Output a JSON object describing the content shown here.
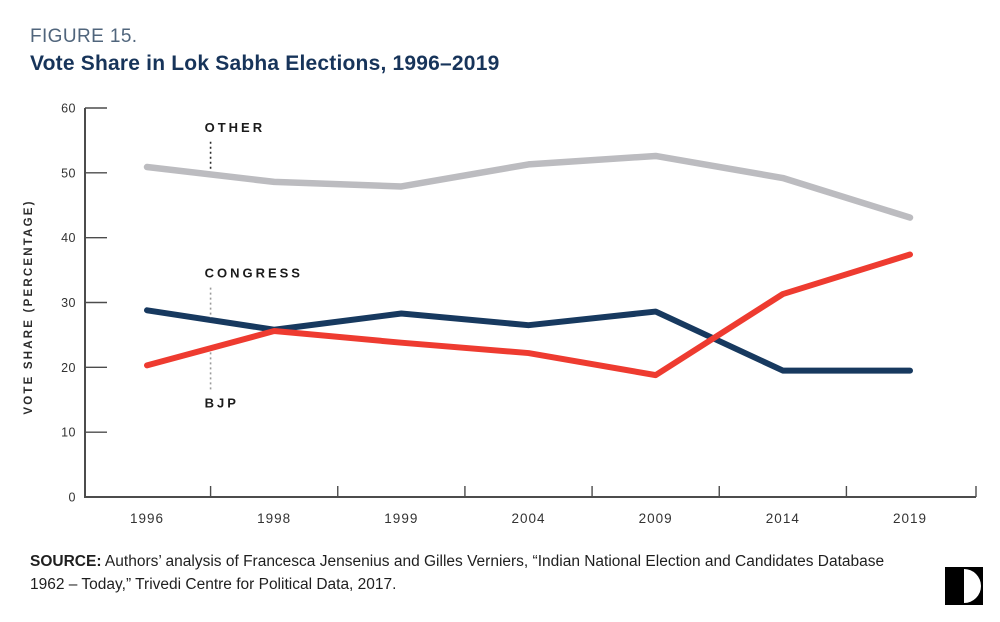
{
  "header": {
    "figure_label": "FIGURE 15.",
    "title": "Vote Share in Lok Sabha Elections, 1996–2019"
  },
  "chart_data": {
    "type": "line",
    "x": [
      1996,
      1998,
      1999,
      2004,
      2009,
      2014,
      2019
    ],
    "x_tick_labels": [
      "1996",
      "1998",
      "1999",
      "2004",
      "2009",
      "2014",
      "2019"
    ],
    "y_ticks": [
      0,
      10,
      20,
      30,
      40,
      50,
      60
    ],
    "ylim": [
      0,
      60
    ],
    "ylabel": "VOTE SHARE (PERCENTAGE)",
    "xlabel": "",
    "title": "Vote Share in Lok Sabha Elections, 1996–2019",
    "grid": false,
    "legend": "inline-annotations",
    "series": [
      {
        "name": "OTHER",
        "color": "#bcbcc0",
        "values": [
          50.9,
          48.6,
          47.9,
          51.3,
          52.6,
          49.2,
          43.1
        ]
      },
      {
        "name": "CONGRESS",
        "color": "#17395f",
        "values": [
          28.8,
          25.8,
          28.3,
          26.5,
          28.6,
          19.5,
          19.5
        ]
      },
      {
        "name": "BJP",
        "color": "#ee3b30",
        "values": [
          20.3,
          25.6,
          23.8,
          22.2,
          18.8,
          31.3,
          37.4
        ]
      }
    ],
    "annotations": [
      {
        "text": "OTHER",
        "x_between": [
          0,
          1
        ],
        "label_v": 56.9,
        "leader_v": [
          54.8,
          50.6
        ],
        "leader_color": "#2b2b2b"
      },
      {
        "text": "CONGRESS",
        "x_between": [
          0,
          1
        ],
        "label_v": 34.5,
        "leader_v": [
          32.3,
          27.6
        ],
        "leader_color": "#9b9b9b"
      },
      {
        "text": "BJP",
        "x_between": [
          0,
          1
        ],
        "label_v": 14.4,
        "leader_v": [
          22.3,
          16.6
        ],
        "leader_color": "#9b9b9b"
      }
    ],
    "colors": {
      "axis": "#4c4c4c",
      "tick_text": "#333333",
      "annotation_text": "#1b1b1b",
      "ylabel_text": "#2b2b2b"
    }
  },
  "source": {
    "prefix": "SOURCE:",
    "text": " Authors’ analysis of Francesca Jensenius and Gilles Verniers, “Indian National Election and Candidates Database 1962 – Today,” Trivedi Centre for Political Data, 2017."
  },
  "logo": {
    "name": "carnegie-logo"
  }
}
